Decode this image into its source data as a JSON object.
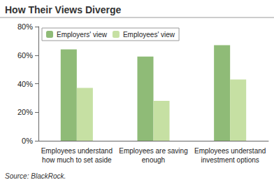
{
  "chart_data": {
    "type": "bar",
    "title": "How Their Views Diverge",
    "source": "Source: BlackRock.",
    "categories": [
      "Employees understand\nhow much to set aside",
      "Employees are saving\nenough",
      "Employees understand\ninvestment options"
    ],
    "series": [
      {
        "name": "Employers' view",
        "color": "#8fbb77",
        "values": [
          64,
          59,
          67
        ]
      },
      {
        "name": "Employees' view",
        "color": "#c6e0a3",
        "values": [
          37,
          28,
          43
        ]
      }
    ],
    "ylim": [
      0,
      80
    ],
    "yticks": [
      {
        "value": 0,
        "label": "0%"
      },
      {
        "value": 20,
        "label": "20%"
      },
      {
        "value": 40,
        "label": "40%"
      },
      {
        "value": 60,
        "label": "60%"
      },
      {
        "value": 80,
        "label": "80%"
      }
    ],
    "grid": false,
    "legend": "top-left"
  }
}
